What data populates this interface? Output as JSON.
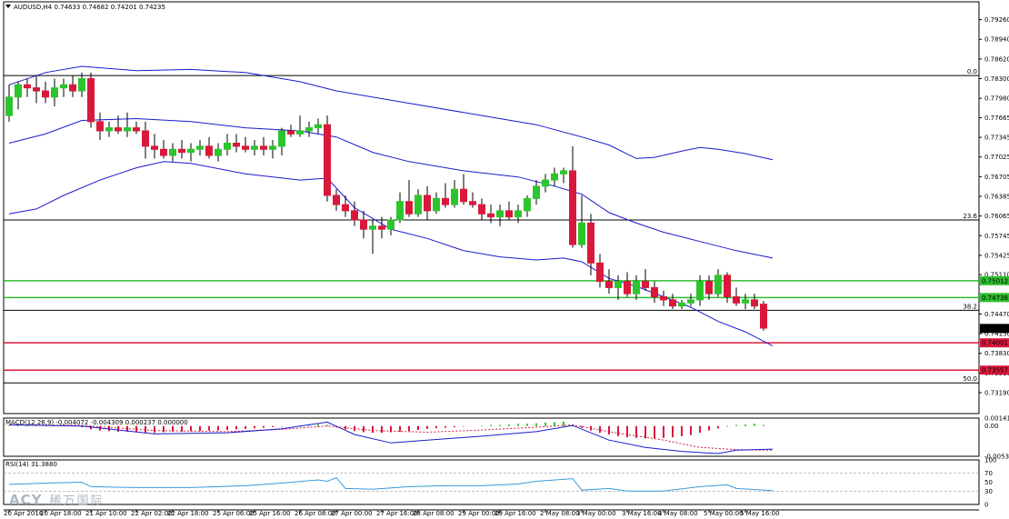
{
  "chart_data": {
    "type": "candlestick",
    "symbol": "AUDUSD,H4",
    "header_values": "0.74633 0.74682 0.74201 0.74235",
    "price_axis": {
      "min": 0.7285,
      "max": 0.7955,
      "ticks": [
        "0.79260",
        "0.78940",
        "0.78620",
        "0.78300",
        "0.77980",
        "0.77665",
        "0.77345",
        "0.77025",
        "0.76705",
        "0.76385",
        "0.76065",
        "0.75745",
        "0.75425",
        "0.75110",
        "0.74470",
        "0.74150",
        "0.73830",
        "0.73510",
        "0.73190"
      ]
    },
    "time_axis": {
      "bars": 84,
      "labels": [
        {
          "i": 0,
          "t": "20 Apr 2016"
        },
        {
          "i": 4,
          "t": "20 Apr 18:00"
        },
        {
          "i": 9,
          "t": "21 Apr 10:00"
        },
        {
          "i": 14,
          "t": "22 Apr 02:00"
        },
        {
          "i": 18,
          "t": "22 Apr 18:00"
        },
        {
          "i": 23,
          "t": "25 Apr 06:00"
        },
        {
          "i": 27,
          "t": "25 Apr 16:00"
        },
        {
          "i": 32,
          "t": "26 Apr 08:00"
        },
        {
          "i": 36,
          "t": "27 Apr 00:00"
        },
        {
          "i": 41,
          "t": "27 Apr 16:00"
        },
        {
          "i": 45,
          "t": "28 Apr 08:00"
        },
        {
          "i": 50,
          "t": "29 Apr 00:00"
        },
        {
          "i": 54,
          "t": "29 Apr 16:00"
        },
        {
          "i": 59,
          "t": "2 May 08:00"
        },
        {
          "i": 63,
          "t": "3 May 00:00"
        },
        {
          "i": 68,
          "t": "3 May 16:00"
        },
        {
          "i": 72,
          "t": "4 May 08:00"
        },
        {
          "i": 77,
          "t": "5 May 00:00"
        },
        {
          "i": 81,
          "t": "5 May 16:00"
        }
      ]
    },
    "fibonacci": [
      {
        "label": "0.0",
        "price": 0.7835
      },
      {
        "label": "23.6",
        "price": 0.76
      },
      {
        "label": "38.2",
        "price": 0.7453
      },
      {
        "label": "50.0",
        "price": 0.7335
      }
    ],
    "horizontal_levels": [
      {
        "price": 0.75012,
        "label": "0.75012",
        "color": "#2ebd2e"
      },
      {
        "price": 0.74738,
        "label": "0.74738",
        "color": "#2ebd2e"
      },
      {
        "price": 0.74001,
        "label": "0.74001",
        "color": "#d9183b"
      },
      {
        "price": 0.73557,
        "label": "0.73557",
        "color": "#d9183b"
      }
    ],
    "current_price": {
      "price": 0.74235,
      "label": "0.74235"
    },
    "candles": [
      [
        0.777,
        0.782,
        0.776,
        0.78
      ],
      [
        0.78,
        0.7825,
        0.778,
        0.782
      ],
      [
        0.782,
        0.783,
        0.78,
        0.7815
      ],
      [
        0.7815,
        0.7835,
        0.779,
        0.781
      ],
      [
        0.781,
        0.7825,
        0.779,
        0.78
      ],
      [
        0.78,
        0.783,
        0.7785,
        0.7815
      ],
      [
        0.7815,
        0.783,
        0.78,
        0.782
      ],
      [
        0.782,
        0.7835,
        0.78,
        0.781
      ],
      [
        0.781,
        0.784,
        0.78,
        0.783
      ],
      [
        0.783,
        0.784,
        0.775,
        0.776
      ],
      [
        0.776,
        0.7775,
        0.773,
        0.7745
      ],
      [
        0.7745,
        0.776,
        0.7735,
        0.775
      ],
      [
        0.775,
        0.777,
        0.774,
        0.7745
      ],
      [
        0.7745,
        0.7775,
        0.7735,
        0.775
      ],
      [
        0.775,
        0.776,
        0.774,
        0.7745
      ],
      [
        0.7745,
        0.776,
        0.77,
        0.772
      ],
      [
        0.772,
        0.774,
        0.77,
        0.7715
      ],
      [
        0.7715,
        0.773,
        0.77,
        0.7705
      ],
      [
        0.7705,
        0.7725,
        0.7695,
        0.7715
      ],
      [
        0.7715,
        0.773,
        0.77,
        0.771
      ],
      [
        0.771,
        0.7725,
        0.7695,
        0.7715
      ],
      [
        0.7715,
        0.773,
        0.7705,
        0.772
      ],
      [
        0.772,
        0.7735,
        0.77,
        0.7705
      ],
      [
        0.7705,
        0.7725,
        0.7695,
        0.7715
      ],
      [
        0.7715,
        0.774,
        0.7705,
        0.7725
      ],
      [
        0.7725,
        0.774,
        0.771,
        0.772
      ],
      [
        0.772,
        0.7735,
        0.771,
        0.7715
      ],
      [
        0.7715,
        0.773,
        0.7705,
        0.772
      ],
      [
        0.772,
        0.7735,
        0.7705,
        0.7715
      ],
      [
        0.7715,
        0.773,
        0.77,
        0.772
      ],
      [
        0.772,
        0.775,
        0.7705,
        0.7745
      ],
      [
        0.7745,
        0.7755,
        0.7735,
        0.774
      ],
      [
        0.774,
        0.777,
        0.7735,
        0.7745
      ],
      [
        0.7745,
        0.776,
        0.7735,
        0.775
      ],
      [
        0.775,
        0.7765,
        0.774,
        0.7755
      ],
      [
        0.7755,
        0.777,
        0.763,
        0.764
      ],
      [
        0.764,
        0.765,
        0.7615,
        0.7625
      ],
      [
        0.7625,
        0.764,
        0.7605,
        0.7615
      ],
      [
        0.7615,
        0.763,
        0.759,
        0.76
      ],
      [
        0.76,
        0.7615,
        0.757,
        0.7585
      ],
      [
        0.7585,
        0.76,
        0.7545,
        0.759
      ],
      [
        0.759,
        0.7605,
        0.757,
        0.7585
      ],
      [
        0.7585,
        0.7605,
        0.7575,
        0.76
      ],
      [
        0.76,
        0.7645,
        0.7595,
        0.763
      ],
      [
        0.763,
        0.7665,
        0.7605,
        0.761
      ],
      [
        0.761,
        0.765,
        0.7605,
        0.764
      ],
      [
        0.764,
        0.7655,
        0.76,
        0.7615
      ],
      [
        0.7615,
        0.7645,
        0.761,
        0.7635
      ],
      [
        0.7635,
        0.766,
        0.762,
        0.7625
      ],
      [
        0.7625,
        0.7665,
        0.762,
        0.765
      ],
      [
        0.765,
        0.7675,
        0.7625,
        0.763
      ],
      [
        0.763,
        0.7645,
        0.762,
        0.7625
      ],
      [
        0.7625,
        0.7635,
        0.76,
        0.761
      ],
      [
        0.761,
        0.7625,
        0.7595,
        0.7605
      ],
      [
        0.7605,
        0.7625,
        0.759,
        0.7615
      ],
      [
        0.7615,
        0.763,
        0.76,
        0.7605
      ],
      [
        0.7605,
        0.7625,
        0.7595,
        0.7615
      ],
      [
        0.7615,
        0.764,
        0.7605,
        0.7635
      ],
      [
        0.7635,
        0.7665,
        0.7625,
        0.7655
      ],
      [
        0.7655,
        0.7675,
        0.7645,
        0.7665
      ],
      [
        0.7665,
        0.7685,
        0.7655,
        0.7675
      ],
      [
        0.7675,
        0.7685,
        0.766,
        0.768
      ],
      [
        0.768,
        0.772,
        0.7555,
        0.756
      ],
      [
        0.756,
        0.764,
        0.7555,
        0.7595
      ],
      [
        0.7595,
        0.761,
        0.751,
        0.753
      ],
      [
        0.753,
        0.7545,
        0.749,
        0.75
      ],
      [
        0.75,
        0.752,
        0.748,
        0.749
      ],
      [
        0.749,
        0.751,
        0.747,
        0.75
      ],
      [
        0.75,
        0.7515,
        0.7475,
        0.748
      ],
      [
        0.748,
        0.751,
        0.747,
        0.75
      ],
      [
        0.75,
        0.752,
        0.7485,
        0.749
      ],
      [
        0.749,
        0.75,
        0.7465,
        0.7475
      ],
      [
        0.7475,
        0.7485,
        0.746,
        0.747
      ],
      [
        0.747,
        0.748,
        0.7455,
        0.746
      ],
      [
        0.746,
        0.747,
        0.7455,
        0.7465
      ],
      [
        0.7465,
        0.748,
        0.746,
        0.747
      ],
      [
        0.747,
        0.751,
        0.746,
        0.75
      ],
      [
        0.75,
        0.751,
        0.747,
        0.748
      ],
      [
        0.748,
        0.752,
        0.7475,
        0.751
      ],
      [
        0.751,
        0.7515,
        0.7465,
        0.7475
      ],
      [
        0.7475,
        0.749,
        0.746,
        0.7465
      ],
      [
        0.7465,
        0.748,
        0.7455,
        0.747
      ],
      [
        0.747,
        0.748,
        0.7455,
        0.746
      ],
      [
        0.7463,
        0.7468,
        0.742,
        0.7424
      ]
    ],
    "bollinger": {
      "color": "#1a1acd",
      "upper": [
        [
          0,
          0.782
        ],
        [
          4,
          0.784
        ],
        [
          8,
          0.785
        ],
        [
          14,
          0.7843
        ],
        [
          20,
          0.7845
        ],
        [
          26,
          0.784
        ],
        [
          32,
          0.7825
        ],
        [
          36,
          0.781
        ],
        [
          44,
          0.779
        ],
        [
          52,
          0.777
        ],
        [
          58,
          0.7755
        ],
        [
          63,
          0.7735
        ],
        [
          66,
          0.7722
        ],
        [
          69,
          0.77
        ],
        [
          71,
          0.7702
        ],
        [
          74,
          0.7712
        ],
        [
          76,
          0.7718
        ],
        [
          78,
          0.7715
        ],
        [
          81,
          0.7708
        ],
        [
          84,
          0.7698
        ]
      ],
      "middle": [
        [
          0,
          0.7725
        ],
        [
          4,
          0.774
        ],
        [
          8,
          0.7762
        ],
        [
          14,
          0.7765
        ],
        [
          20,
          0.776
        ],
        [
          26,
          0.775
        ],
        [
          32,
          0.7745
        ],
        [
          36,
          0.7735
        ],
        [
          40,
          0.771
        ],
        [
          44,
          0.7695
        ],
        [
          50,
          0.768
        ],
        [
          56,
          0.767
        ],
        [
          60,
          0.7655
        ],
        [
          63,
          0.7642
        ],
        [
          66,
          0.7612
        ],
        [
          69,
          0.7595
        ],
        [
          72,
          0.758
        ],
        [
          76,
          0.7565
        ],
        [
          80,
          0.755
        ],
        [
          84,
          0.7538
        ]
      ],
      "lower": [
        [
          0,
          0.761
        ],
        [
          3,
          0.7618
        ],
        [
          6,
          0.764
        ],
        [
          10,
          0.7665
        ],
        [
          14,
          0.7685
        ],
        [
          17,
          0.7695
        ],
        [
          20,
          0.7692
        ],
        [
          26,
          0.7675
        ],
        [
          32,
          0.7665
        ],
        [
          35,
          0.7668
        ],
        [
          38,
          0.762
        ],
        [
          42,
          0.7585
        ],
        [
          46,
          0.757
        ],
        [
          50,
          0.755
        ],
        [
          54,
          0.754
        ],
        [
          58,
          0.7535
        ],
        [
          61,
          0.7538
        ],
        [
          63,
          0.7532
        ],
        [
          66,
          0.7505
        ],
        [
          69,
          0.7492
        ],
        [
          72,
          0.7475
        ],
        [
          75,
          0.7458
        ],
        [
          78,
          0.7435
        ],
        [
          81,
          0.7418
        ],
        [
          84,
          0.7395
        ]
      ]
    },
    "macd": {
      "title": "MACD(12,26,9) -0.004072 -0.004309 0.000237 0.000000",
      "range": [
        -0.00538,
        0.00141
      ],
      "ticks": [
        "0.00141",
        "0.00",
        "-0.00538"
      ],
      "histogram": [
        0.0001,
        0.0002,
        0.0003,
        0.0002,
        0.0001,
        0.0002,
        0.0003,
        0.0001,
        -0.0002,
        -0.0006,
        -0.0008,
        -0.0009,
        -0.001,
        -0.001,
        -0.0011,
        -0.0012,
        -0.0012,
        -0.0011,
        -0.001,
        -0.001,
        -0.0009,
        -0.0009,
        -0.0008,
        -0.0008,
        -0.0007,
        -0.0006,
        -0.0005,
        -0.0004,
        -0.0003,
        -0.0002,
        -0.0001,
        0.0,
        0.0001,
        0.0002,
        0.0003,
        0.0002,
        -0.0002,
        -0.0006,
        -0.0009,
        -0.0011,
        -0.0012,
        -0.0012,
        -0.0011,
        -0.001,
        -0.0009,
        -0.0007,
        -0.0005,
        -0.0004,
        -0.0003,
        -0.0002,
        -0.0001,
        0.0,
        0.0001,
        0.0002,
        0.0002,
        0.0003,
        0.0004,
        0.0004,
        0.0005,
        0.0006,
        0.0007,
        0.0008,
        0.0003,
        -0.0003,
        -0.0008,
        -0.0012,
        -0.0015,
        -0.0018,
        -0.002,
        -0.0021,
        -0.0022,
        -0.0022,
        -0.0021,
        -0.002,
        -0.0018,
        -0.0016,
        -0.0012,
        -0.0008,
        -0.0004,
        -0.0001,
        0.0002,
        0.0003,
        0.0004,
        0.0002
      ],
      "signal": [
        [
          0,
          0.0002
        ],
        [
          8,
          0.0001
        ],
        [
          16,
          -0.0008
        ],
        [
          24,
          -0.001
        ],
        [
          30,
          -0.0006
        ],
        [
          35,
          0.0
        ],
        [
          40,
          -0.0008
        ],
        [
          46,
          -0.0011
        ],
        [
          52,
          -0.0007
        ],
        [
          58,
          -0.0002
        ],
        [
          62,
          0.0002
        ],
        [
          66,
          -0.001
        ],
        [
          72,
          -0.0025
        ],
        [
          76,
          -0.0038
        ],
        [
          80,
          -0.0042
        ],
        [
          84,
          -0.0043
        ]
      ],
      "main": [
        [
          0,
          0.0002
        ],
        [
          8,
          0.0
        ],
        [
          16,
          -0.0014
        ],
        [
          24,
          -0.0012
        ],
        [
          30,
          -0.0005
        ],
        [
          35,
          0.0007
        ],
        [
          38,
          -0.0015
        ],
        [
          42,
          -0.003
        ],
        [
          46,
          -0.0025
        ],
        [
          52,
          -0.0018
        ],
        [
          58,
          -0.001
        ],
        [
          62,
          0.0001
        ],
        [
          66,
          -0.0025
        ],
        [
          70,
          -0.0038
        ],
        [
          74,
          -0.0045
        ],
        [
          78,
          -0.0049
        ],
        [
          80,
          -0.0043
        ],
        [
          84,
          -0.0041
        ]
      ]
    },
    "rsi": {
      "title": "RSI(14) 31.3880",
      "range": [
        0,
        100
      ],
      "ticks": [
        "100",
        "70",
        "50",
        "30",
        "0"
      ],
      "values": [
        [
          0,
          45
        ],
        [
          4,
          48
        ],
        [
          8,
          50
        ],
        [
          9,
          40
        ],
        [
          14,
          38
        ],
        [
          20,
          38
        ],
        [
          26,
          42
        ],
        [
          30,
          48
        ],
        [
          34,
          55
        ],
        [
          35,
          52
        ],
        [
          36,
          60
        ],
        [
          37,
          36
        ],
        [
          40,
          34
        ],
        [
          44,
          40
        ],
        [
          48,
          42
        ],
        [
          52,
          42
        ],
        [
          56,
          46
        ],
        [
          58,
          52
        ],
        [
          62,
          58
        ],
        [
          63,
          32
        ],
        [
          66,
          36
        ],
        [
          68,
          30
        ],
        [
          72,
          30
        ],
        [
          76,
          40
        ],
        [
          79,
          44
        ],
        [
          80,
          36
        ],
        [
          84,
          31
        ]
      ]
    },
    "watermark": {
      "brand": "ACY",
      "chinese": "稀万国际"
    }
  }
}
